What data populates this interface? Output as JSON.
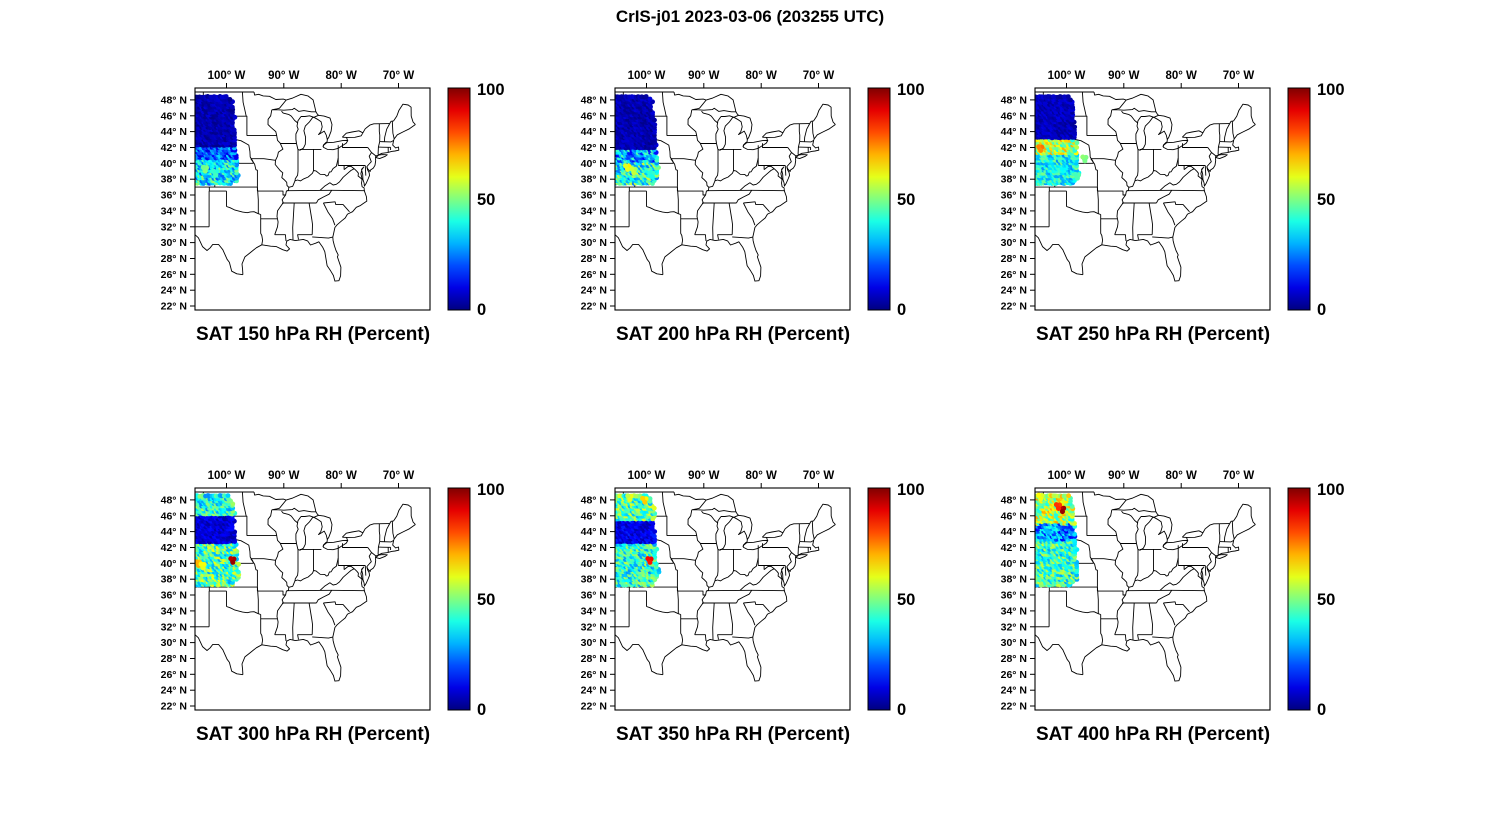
{
  "chart_data": {
    "type": "scatter",
    "subtype": "geo-swath-multipanel",
    "title": "CrIS-j01 2023-03-06 (203255 UTC)",
    "colormap": "jet",
    "value_units": "Percent",
    "colorbar": {
      "min": 0,
      "max": 100,
      "tick_values": [
        100,
        50,
        0
      ],
      "tick_labels": [
        "100",
        "50",
        "0"
      ]
    },
    "x_axis": {
      "range_lon": [
        -105.5,
        -64.5
      ],
      "tick_lons": [
        -100,
        -90,
        -80,
        -70
      ],
      "tick_labels": [
        "100° W",
        "90° W",
        "80° W",
        "70° W"
      ]
    },
    "y_axis": {
      "range_lat": [
        21.5,
        49.5
      ],
      "tick_lats": [
        48,
        46,
        44,
        42,
        40,
        38,
        36,
        34,
        32,
        30,
        28,
        26,
        24,
        22
      ],
      "tick_labels": [
        "48° N",
        "46° N",
        "44° N",
        "42° N",
        "40° N",
        "38° N",
        "36° N",
        "34° N",
        "32° N",
        "30° N",
        "28° N",
        "26° N",
        "24° N",
        "22° N"
      ]
    },
    "panels": [
      {
        "title": "SAT 150 hPa RH (Percent)",
        "pressure_hpa": 150,
        "swath": {
          "lon_west": -105.5,
          "lat_min": 37.5,
          "lat_max": 48.6,
          "value_bands_by_lat": [
            [
              37.5,
              40.6,
              20,
              52
            ],
            [
              40.6,
              42.2,
              8,
              36
            ],
            [
              42.2,
              48.7,
              1,
              9
            ]
          ],
          "hot_spots": [
            [
              -103.8,
              39.3,
              48
            ],
            [
              -102.0,
              38.8,
              42
            ]
          ]
        }
      },
      {
        "title": "SAT 200 hPa RH (Percent)",
        "pressure_hpa": 200,
        "swath": {
          "lon_west": -105.5,
          "lat_min": 37.5,
          "lat_max": 48.6,
          "value_bands_by_lat": [
            [
              37.5,
              40.3,
              24,
              58
            ],
            [
              40.3,
              41.9,
              12,
              46
            ],
            [
              41.9,
              48.7,
              1,
              9
            ]
          ],
          "hot_spots": [
            [
              -103.4,
              39.5,
              62
            ],
            [
              -102.3,
              39.1,
              55
            ],
            [
              -99.2,
              38.6,
              42
            ]
          ]
        }
      },
      {
        "title": "SAT 250 hPa RH (Percent)",
        "pressure_hpa": 250,
        "swath": {
          "lon_west": -105.5,
          "lat_min": 37.5,
          "lat_max": 48.6,
          "value_bands_by_lat": [
            [
              37.5,
              41.2,
              26,
              50
            ],
            [
              41.2,
              43.1,
              40,
              72
            ],
            [
              43.1,
              48.7,
              2,
              10
            ]
          ],
          "hot_spots": [
            [
              -98.2,
              38.4,
              45
            ],
            [
              -104.6,
              41.9,
              74
            ],
            [
              -96.9,
              40.6,
              50
            ]
          ]
        }
      },
      {
        "title": "SAT 300 hPa RH (Percent)",
        "pressure_hpa": 300,
        "swath": {
          "lon_west": -105.5,
          "lat_min": 37.3,
          "lat_max": 48.8,
          "value_bands_by_lat": [
            [
              37.3,
              42.6,
              28,
              62
            ],
            [
              42.6,
              46.2,
              3,
              14
            ],
            [
              46.2,
              48.9,
              26,
              55
            ]
          ],
          "hot_spots": [
            [
              -99.0,
              40.4,
              95
            ],
            [
              -105.0,
              40.0,
              68
            ],
            [
              -104.2,
              39.7,
              62
            ]
          ]
        }
      },
      {
        "title": "SAT 350 hPa RH (Percent)",
        "pressure_hpa": 350,
        "swath": {
          "lon_west": -105.5,
          "lat_min": 37.3,
          "lat_max": 48.8,
          "value_bands_by_lat": [
            [
              37.3,
              42.6,
              26,
              56
            ],
            [
              42.6,
              45.4,
              4,
              16
            ],
            [
              45.4,
              48.9,
              30,
              62
            ]
          ],
          "hot_spots": [
            [
              -99.5,
              40.4,
              88
            ],
            [
              -100.4,
              48.0,
              66
            ],
            [
              -103.0,
              48.3,
              58
            ]
          ]
        }
      },
      {
        "title": "SAT 400 hPa RH (Percent)",
        "pressure_hpa": 400,
        "swath": {
          "lon_west": -105.5,
          "lat_min": 37.3,
          "lat_max": 48.8,
          "value_bands_by_lat": [
            [
              37.3,
              43.0,
              28,
              58
            ],
            [
              43.0,
              45.0,
              12,
              42
            ],
            [
              45.0,
              48.9,
              38,
              72
            ]
          ],
          "hot_spots": [
            [
              -100.8,
              46.8,
              95
            ],
            [
              -101.5,
              47.2,
              82
            ],
            [
              -104.6,
              48.4,
              60
            ]
          ]
        }
      }
    ]
  }
}
